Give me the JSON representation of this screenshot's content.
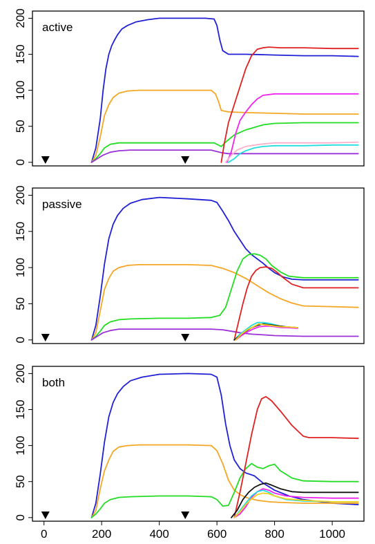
{
  "chart_data": [
    {
      "type": "line",
      "panel_label": "active",
      "xlim": [
        -40,
        1110
      ],
      "ylim": [
        -5,
        210
      ],
      "x_ticks": [],
      "y_ticks": [
        0,
        50,
        100,
        150,
        200
      ],
      "markers_x": [
        5,
        490
      ],
      "series": [
        {
          "color": "#1f1fd6",
          "x": [
            165,
            180,
            195,
            205,
            215,
            225,
            235,
            245,
            255,
            270,
            290,
            320,
            360,
            400,
            450,
            500,
            560,
            590,
            600,
            610,
            620,
            640,
            700,
            800,
            900,
            1000,
            1090
          ],
          "y": [
            0,
            20,
            60,
            100,
            130,
            150,
            162,
            170,
            177,
            185,
            190,
            195,
            198,
            200,
            200,
            200,
            200,
            199,
            190,
            170,
            155,
            150,
            150,
            149,
            148,
            148,
            147
          ]
        },
        {
          "color": "#f5a623",
          "x": [
            165,
            180,
            195,
            210,
            225,
            240,
            260,
            290,
            330,
            400,
            500,
            580,
            595,
            605,
            615,
            640,
            700,
            800,
            900,
            1000,
            1090
          ],
          "y": [
            0,
            10,
            35,
            65,
            80,
            90,
            96,
            99,
            100,
            100,
            100,
            100,
            95,
            85,
            72,
            70,
            69,
            68,
            67,
            67,
            67
          ]
        },
        {
          "color": "#22dd22",
          "x": [
            165,
            180,
            195,
            210,
            230,
            260,
            300,
            400,
            500,
            590,
            605,
            615,
            630,
            660,
            700,
            760,
            800,
            900,
            1000,
            1090
          ],
          "y": [
            0,
            5,
            12,
            20,
            25,
            27,
            27,
            27,
            27,
            27,
            24,
            22,
            28,
            38,
            45,
            52,
            54,
            55,
            55,
            55
          ]
        },
        {
          "color": "#9b30d9",
          "x": [
            165,
            185,
            205,
            230,
            260,
            300,
            400,
            500,
            580,
            600,
            620,
            640,
            700,
            800,
            900,
            1000,
            1090
          ],
          "y": [
            0,
            5,
            10,
            14,
            16,
            17,
            17,
            17,
            17,
            15,
            13,
            12,
            12,
            12,
            12,
            12,
            12
          ]
        },
        {
          "color": "#e02020",
          "x": [
            615,
            625,
            640,
            660,
            680,
            700,
            720,
            740,
            760,
            780,
            820,
            900,
            1000,
            1090
          ],
          "y": [
            0,
            25,
            55,
            80,
            105,
            130,
            148,
            157,
            159,
            160,
            159,
            159,
            158,
            158
          ]
        },
        {
          "color": "#ee22ee",
          "x": [
            635,
            650,
            665,
            680,
            700,
            720,
            740,
            760,
            800,
            900,
            1000,
            1090
          ],
          "y": [
            0,
            15,
            40,
            58,
            70,
            80,
            88,
            93,
            95,
            95,
            95,
            95
          ]
        },
        {
          "color": "#ffb0c8",
          "x": [
            630,
            650,
            670,
            700,
            750,
            800,
            900,
            1000,
            1090
          ],
          "y": [
            0,
            10,
            17,
            22,
            25,
            27,
            27,
            27,
            28
          ]
        },
        {
          "color": "#22dddd",
          "x": [
            640,
            660,
            680,
            700,
            730,
            760,
            800,
            900,
            1000,
            1090
          ],
          "y": [
            0,
            5,
            12,
            16,
            20,
            22,
            23,
            23,
            24,
            24
          ]
        }
      ]
    },
    {
      "type": "line",
      "panel_label": "passive",
      "xlim": [
        -40,
        1110
      ],
      "ylim": [
        -5,
        210
      ],
      "x_ticks": [],
      "y_ticks": [
        0,
        50,
        100,
        150,
        200
      ],
      "markers_x": [
        5,
        490
      ],
      "series": [
        {
          "color": "#1f1fd6",
          "x": [
            165,
            180,
            195,
            210,
            225,
            240,
            255,
            275,
            300,
            340,
            400,
            500,
            580,
            600,
            620,
            640,
            660,
            680,
            700,
            720,
            740,
            760,
            780,
            800,
            830,
            860,
            900,
            1000,
            1090
          ],
          "y": [
            0,
            20,
            60,
            105,
            140,
            160,
            172,
            182,
            189,
            194,
            197,
            195,
            193,
            190,
            178,
            165,
            150,
            138,
            126,
            118,
            112,
            106,
            99,
            93,
            87,
            84,
            83,
            83,
            83
          ]
        },
        {
          "color": "#f5a623",
          "x": [
            165,
            180,
            195,
            210,
            225,
            240,
            260,
            290,
            330,
            400,
            500,
            580,
            620,
            660,
            700,
            740,
            780,
            820,
            860,
            900,
            1000,
            1090
          ],
          "y": [
            0,
            10,
            40,
            70,
            85,
            95,
            100,
            103,
            104,
            104,
            104,
            103,
            99,
            93,
            85,
            75,
            65,
            57,
            51,
            47,
            46,
            45
          ]
        },
        {
          "color": "#22dd22",
          "x": [
            165,
            180,
            195,
            210,
            230,
            260,
            300,
            400,
            500,
            580,
            610,
            630,
            650,
            670,
            690,
            710,
            730,
            750,
            770,
            790,
            820,
            850,
            900,
            1000,
            1090
          ],
          "y": [
            0,
            5,
            12,
            20,
            25,
            28,
            29,
            30,
            30,
            31,
            34,
            45,
            70,
            95,
            112,
            118,
            119,
            117,
            112,
            103,
            94,
            88,
            86,
            86,
            86
          ]
        },
        {
          "color": "#9b30d9",
          "x": [
            165,
            185,
            205,
            230,
            260,
            300,
            400,
            500,
            580,
            620,
            650,
            680,
            720,
            760,
            800,
            900,
            1000,
            1090
          ],
          "y": [
            0,
            5,
            10,
            13,
            15,
            15,
            15,
            15,
            15,
            14,
            12,
            10,
            8,
            7,
            6,
            5,
            5,
            5
          ]
        },
        {
          "color": "#e02020",
          "x": [
            660,
            675,
            690,
            705,
            720,
            735,
            750,
            770,
            790,
            810,
            830,
            860,
            900,
            1000,
            1090
          ],
          "y": [
            0,
            25,
            50,
            72,
            88,
            96,
            100,
            101,
            99,
            93,
            86,
            77,
            72,
            72,
            72
          ]
        },
        {
          "color": "#22dddd",
          "x": [
            660,
            680,
            700,
            720,
            740,
            760,
            780,
            800,
            820,
            840,
            880
          ],
          "y": [
            0,
            8,
            14,
            20,
            24,
            24,
            23,
            21,
            19,
            18,
            17
          ]
        },
        {
          "color": "#111111",
          "x": [
            660,
            680,
            700,
            720,
            740,
            760,
            780,
            800,
            820,
            840,
            880
          ],
          "y": [
            0,
            6,
            12,
            17,
            20,
            22,
            21,
            20,
            19,
            18,
            17
          ]
        },
        {
          "color": "#ee22ee",
          "x": [
            665,
            685,
            705,
            725,
            745,
            765,
            785,
            805,
            825,
            845,
            880
          ],
          "y": [
            0,
            6,
            11,
            15,
            18,
            19,
            19,
            18,
            17,
            17,
            16
          ]
        },
        {
          "color": "#f2d21a",
          "x": [
            665,
            685,
            705,
            725,
            745,
            765,
            785,
            805,
            825,
            845,
            880
          ],
          "y": [
            0,
            8,
            14,
            18,
            22,
            21,
            20,
            19,
            18,
            18,
            17
          ]
        }
      ]
    },
    {
      "type": "line",
      "panel_label": "both",
      "xlim": [
        -40,
        1110
      ],
      "ylim": [
        -5,
        210
      ],
      "x_ticks": [
        0,
        200,
        400,
        600,
        800,
        1000
      ],
      "y_ticks": [
        0,
        50,
        100,
        150,
        200
      ],
      "markers_x": [
        5,
        490
      ],
      "series": [
        {
          "color": "#1f1fd6",
          "x": [
            165,
            180,
            195,
            210,
            225,
            240,
            255,
            275,
            300,
            340,
            400,
            500,
            580,
            600,
            615,
            630,
            645,
            660,
            680,
            700,
            730,
            760,
            800,
            850,
            900,
            1000,
            1090
          ],
          "y": [
            0,
            20,
            60,
            105,
            140,
            160,
            172,
            182,
            190,
            195,
            199,
            200,
            199,
            195,
            170,
            130,
            100,
            80,
            68,
            62,
            58,
            48,
            38,
            30,
            25,
            20,
            18
          ]
        },
        {
          "color": "#f5a623",
          "x": [
            165,
            180,
            195,
            210,
            225,
            240,
            260,
            290,
            330,
            400,
            500,
            580,
            600,
            620,
            640,
            660,
            680,
            700,
            740,
            780,
            820,
            900,
            1000,
            1090
          ],
          "y": [
            0,
            10,
            40,
            65,
            80,
            92,
            98,
            100,
            101,
            101,
            101,
            100,
            93,
            75,
            52,
            38,
            32,
            28,
            24,
            22,
            21,
            20,
            20,
            20
          ]
        },
        {
          "color": "#22dd22",
          "x": [
            165,
            180,
            195,
            210,
            230,
            260,
            300,
            400,
            500,
            580,
            600,
            620,
            640,
            660,
            680,
            700,
            720,
            740,
            760,
            780,
            800,
            820,
            860,
            900,
            1000,
            1090
          ],
          "y": [
            0,
            5,
            12,
            20,
            25,
            28,
            29,
            30,
            30,
            29,
            25,
            16,
            17,
            35,
            55,
            68,
            75,
            70,
            68,
            72,
            74,
            65,
            55,
            51,
            50,
            50
          ]
        },
        {
          "color": "#e02020",
          "x": [
            660,
            680,
            700,
            720,
            740,
            755,
            770,
            790,
            820,
            860,
            900,
            920,
            1000,
            1090
          ],
          "y": [
            0,
            35,
            75,
            115,
            150,
            165,
            168,
            162,
            148,
            128,
            113,
            111,
            111,
            110
          ]
        },
        {
          "color": "#111111",
          "x": [
            650,
            670,
            690,
            710,
            730,
            750,
            770,
            790,
            820,
            860,
            900,
            1000,
            1090
          ],
          "y": [
            0,
            10,
            25,
            35,
            42,
            46,
            48,
            45,
            40,
            36,
            35,
            35,
            35
          ]
        },
        {
          "color": "#ee22ee",
          "x": [
            660,
            680,
            700,
            720,
            740,
            760,
            780,
            800,
            840,
            900,
            1000,
            1090
          ],
          "y": [
            0,
            5,
            15,
            28,
            36,
            40,
            38,
            34,
            30,
            28,
            27,
            27
          ]
        },
        {
          "color": "#22dddd",
          "x": [
            660,
            680,
            700,
            720,
            740,
            760,
            780,
            800,
            840,
            900,
            1000,
            1090
          ],
          "y": [
            0,
            10,
            20,
            30,
            36,
            38,
            35,
            30,
            25,
            23,
            22,
            22
          ]
        },
        {
          "color": "#f2d21a",
          "x": [
            660,
            680,
            700,
            720,
            740,
            760,
            780,
            800,
            840,
            900,
            1000,
            1090
          ],
          "y": [
            0,
            8,
            18,
            26,
            32,
            34,
            33,
            30,
            26,
            24,
            22,
            22
          ]
        }
      ]
    }
  ]
}
